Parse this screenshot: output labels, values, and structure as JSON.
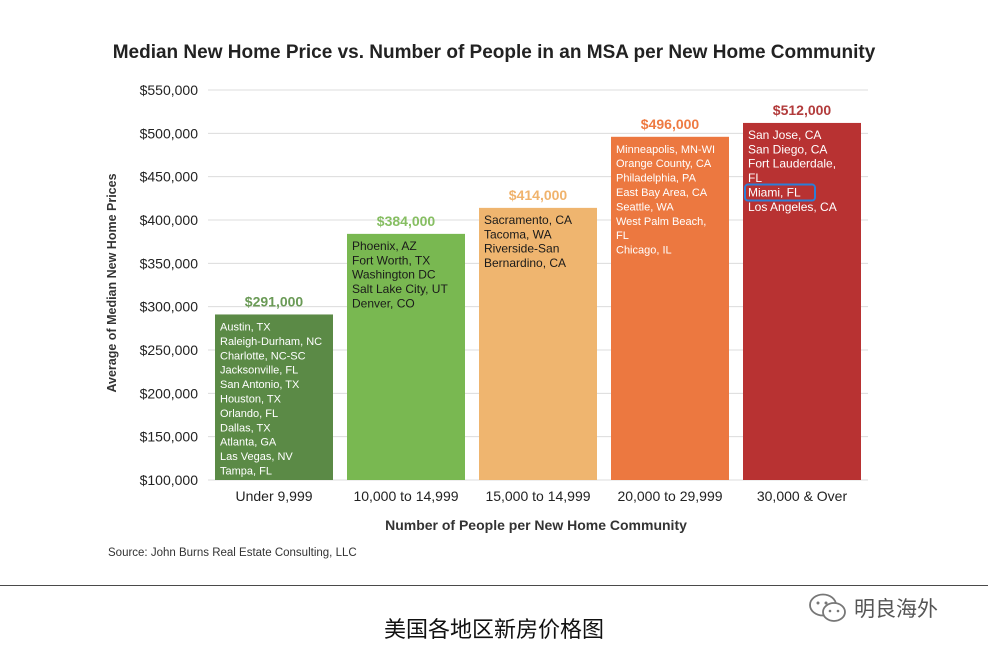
{
  "chart_data": {
    "type": "bar",
    "title": "Median New Home Price vs. Number of People in an MSA per New Home Community",
    "xlabel": "Number of People per New Home Community",
    "ylabel": "Average of Median New Home Prices",
    "ylim": [
      100000,
      550000
    ],
    "yticks": [
      "$100,000",
      "$150,000",
      "$200,000",
      "$250,000",
      "$300,000",
      "$350,000",
      "$400,000",
      "$450,000",
      "$500,000",
      "$550,000"
    ],
    "grid": true,
    "categories": [
      "Under 9,999",
      "10,000 to 14,999",
      "15,000 to 14,999",
      "20,000 to 29,999",
      "30,000 & Over"
    ],
    "values": [
      291000,
      384000,
      414000,
      496000,
      512000
    ],
    "value_labels": [
      "$291,000",
      "$384,000",
      "$414,000",
      "$496,000",
      "$512,000"
    ],
    "bar_colors": [
      "#5b8a46",
      "#79b851",
      "#efb56f",
      "#ec7840",
      "#b83232"
    ],
    "label_colors": [
      "#6a9a56",
      "#86be62",
      "#f0b36c",
      "#ee7a42",
      "#b23b3b"
    ],
    "bar_text_colors": [
      "#ffffff",
      "#1a1a1a",
      "#1a1a1a",
      "#ffffff",
      "#ffffff"
    ],
    "cities": [
      [
        "Austin, TX",
        "Raleigh-Durham, NC",
        "Charlotte, NC-SC",
        "Jacksonville, FL",
        "San Antonio, TX",
        "Houston, TX",
        "Orlando, FL",
        "Dallas, TX",
        "Atlanta, GA",
        "Las Vegas, NV",
        "Tampa, FL"
      ],
      [
        "Phoenix, AZ",
        "Fort Worth, TX",
        "Washington DC",
        "Salt Lake City, UT",
        "Denver, CO"
      ],
      [
        "Sacramento, CA",
        "Tacoma, WA",
        "Riverside-San",
        "Bernardino, CA"
      ],
      [
        "Minneapolis, MN-WI",
        "Orange County, CA",
        "Philadelphia, PA",
        "East Bay Area, CA",
        "Seattle, WA",
        "West Palm Beach,",
        "FL",
        "Chicago, IL"
      ],
      [
        "San Jose, CA",
        "San Diego, CA",
        "Fort Lauderdale,",
        "FL",
        "Miami, FL",
        "Los Angeles, CA"
      ]
    ],
    "highlight": {
      "bar": 4,
      "line": 4,
      "color": "#2b7fd8"
    }
  },
  "source": "Source: John Burns Real Estate Consulting, LLC",
  "caption": "美国各地区新房价格图",
  "watermark": {
    "text": "明良海外",
    "icon": "wechat-icon"
  }
}
